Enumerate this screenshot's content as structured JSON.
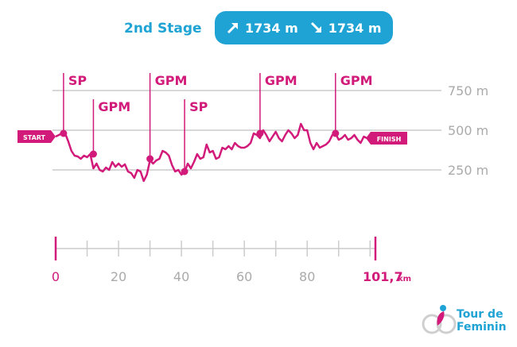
{
  "header": {
    "title": "2nd Stage",
    "ascent": "1734 m",
    "descent": "1734 m",
    "icons": [
      "arrow-up-right-icon",
      "arrow-down-right-icon"
    ]
  },
  "colors": {
    "accent": "#1fa3d4",
    "profile": "#d11a7a",
    "grid": "#cccccc",
    "axis_text": "#aaaaaa"
  },
  "chart_data": {
    "type": "line",
    "title": "2nd Stage",
    "x_unit": "km",
    "y_unit": "m",
    "xlim": [
      0,
      101.7
    ],
    "x_ticks": [
      0,
      20,
      40,
      60,
      80
    ],
    "x_tick_labels": [
      "0",
      "20",
      "40",
      "60",
      "80"
    ],
    "x_end_label": "101,7",
    "x_end_unit": "km",
    "y_ticks": [
      250,
      500,
      750
    ],
    "y_tick_labels": [
      "250 m",
      "500 m",
      "750 m"
    ],
    "start_label": "START",
    "finish_label": "FINISH",
    "series": [
      {
        "x": [
          0,
          1,
          2,
          3,
          4,
          5,
          6,
          7,
          8,
          9,
          10,
          11,
          12,
          13,
          14,
          15,
          16,
          17,
          18,
          19,
          20,
          21,
          22,
          23,
          24,
          25,
          26,
          27,
          28,
          29,
          30,
          31,
          32,
          33,
          34,
          35,
          36,
          37,
          38,
          39,
          40,
          41,
          42,
          43,
          44,
          45,
          46,
          47,
          48,
          49,
          50,
          51,
          52,
          53,
          54,
          55,
          56,
          57,
          58,
          59,
          60,
          61,
          62,
          63,
          64,
          65,
          66,
          67,
          68,
          69,
          70,
          71,
          72,
          73,
          74,
          75,
          76,
          77,
          78,
          79,
          80,
          81,
          82,
          83,
          84,
          85,
          86,
          87,
          88,
          89,
          90,
          91,
          92,
          93,
          94,
          95,
          96,
          97,
          98,
          99,
          100,
          101.7
        ],
        "y": [
          460,
          470,
          480,
          480,
          430,
          370,
          340,
          335,
          320,
          340,
          330,
          350,
          260,
          290,
          250,
          240,
          265,
          250,
          300,
          270,
          290,
          270,
          285,
          240,
          230,
          200,
          250,
          240,
          180,
          220,
          310,
          290,
          310,
          320,
          370,
          360,
          340,
          280,
          240,
          250,
          220,
          235,
          290,
          260,
          300,
          350,
          320,
          330,
          410,
          360,
          370,
          320,
          330,
          390,
          380,
          400,
          380,
          420,
          400,
          390,
          390,
          400,
          420,
          480,
          470,
          450,
          500,
          470,
          430,
          460,
          490,
          450,
          430,
          470,
          500,
          480,
          450,
          470,
          540,
          500,
          500,
          420,
          380,
          420,
          390,
          400,
          410,
          430,
          470,
          480,
          440,
          450,
          470,
          440,
          450,
          470,
          440,
          420,
          460,
          450,
          440,
          450
        ],
        "markers": [
          {
            "x": 2.5,
            "y": 480,
            "label": "SP"
          },
          {
            "x": 12,
            "y": 350,
            "label": "GPM"
          },
          {
            "x": 30,
            "y": 320,
            "label": "GPM"
          },
          {
            "x": 41,
            "y": 240,
            "label": "SP"
          },
          {
            "x": 65,
            "y": 480,
            "label": "GPM"
          },
          {
            "x": 89,
            "y": 480,
            "label": "GPM"
          }
        ]
      }
    ]
  },
  "logo": {
    "line1": "Tour de",
    "line2": "Feminin"
  }
}
